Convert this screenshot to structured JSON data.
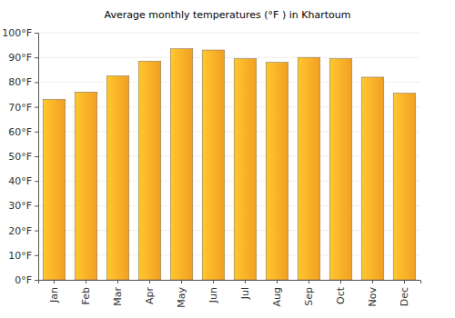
{
  "chart_data": {
    "type": "bar",
    "title": "Average monthly temperatures (°F ) in Khartoum",
    "categories": [
      "Jan",
      "Feb",
      "Mar",
      "Apr",
      "May",
      "Jun",
      "Jul",
      "Aug",
      "Sep",
      "Oct",
      "Nov",
      "Dec"
    ],
    "values": [
      73,
      76,
      82.5,
      88.5,
      93.5,
      93,
      89.5,
      88,
      90,
      89.5,
      82,
      75.5
    ],
    "color": "#ffa726",
    "ylim": [
      0,
      100
    ],
    "yticks": [
      {
        "value": 0,
        "label": "0°F"
      },
      {
        "value": 10,
        "label": "10°F"
      },
      {
        "value": 20,
        "label": "20°F"
      },
      {
        "value": 30,
        "label": "30°F"
      },
      {
        "value": 40,
        "label": "40°F"
      },
      {
        "value": 50,
        "label": "50°F"
      },
      {
        "value": 60,
        "label": "60°F"
      },
      {
        "value": 70,
        "label": "70°F"
      },
      {
        "value": 80,
        "label": "80°F"
      },
      {
        "value": 90,
        "label": "90°F"
      },
      {
        "value": 100,
        "label": "100°F"
      }
    ],
    "grid": true
  }
}
